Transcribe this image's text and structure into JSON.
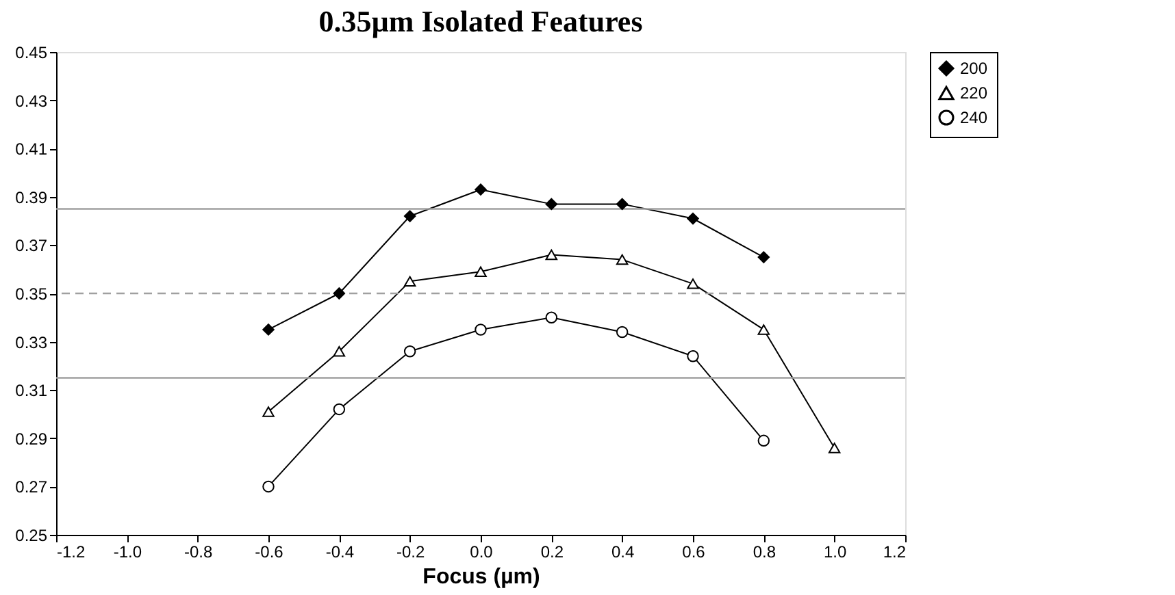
{
  "chart_data": {
    "type": "line",
    "title": "0.35µm Isolated Features",
    "xlabel": "Focus (µm)",
    "x": [
      -0.6,
      -0.4,
      -0.2,
      0.0,
      0.2,
      0.4,
      0.6,
      0.8,
      1.0
    ],
    "series": [
      {
        "name": "200",
        "color": "#000000",
        "marker": "diamond",
        "values": [
          0.335,
          0.35,
          0.382,
          0.393,
          0.387,
          0.387,
          0.381,
          0.365,
          null
        ]
      },
      {
        "name": "220",
        "color": "#000000",
        "marker": "triangle",
        "values": [
          0.301,
          0.326,
          0.355,
          0.359,
          0.366,
          0.364,
          0.354,
          0.335,
          0.286
        ]
      },
      {
        "name": "240",
        "color": "#000000",
        "marker": "circle",
        "values": [
          0.27,
          0.302,
          0.326,
          0.335,
          0.34,
          0.334,
          0.324,
          0.289,
          null
        ]
      }
    ],
    "xlim": [
      -1.2,
      1.2
    ],
    "xticks": [
      -1.2,
      {
        "value": -1.0,
        "label": "-1.0"
      },
      -0.8,
      -0.6,
      -0.4,
      -0.2,
      {
        "value": 0.0,
        "label": "0.0"
      },
      0.2,
      0.4,
      0.6,
      0.8,
      {
        "value": 1.0,
        "label": "1.0"
      },
      1.2
    ],
    "ylim": [
      0.25,
      0.45
    ],
    "yticks": [
      0.25,
      0.27,
      0.29,
      0.31,
      0.33,
      0.35,
      0.37,
      0.39,
      0.41,
      0.43,
      0.45
    ],
    "ref_lines": [
      {
        "axis": "y",
        "value": 0.385,
        "color": "#a0a0a0",
        "line_style": "solid"
      },
      {
        "axis": "y",
        "value": 0.35,
        "color": "#a0a0a0",
        "line_style": "dashed"
      },
      {
        "axis": "y",
        "value": 0.315,
        "color": "#a0a0a0",
        "line_style": "solid"
      }
    ],
    "grid": false,
    "legend": "right",
    "line_style": "solid"
  }
}
